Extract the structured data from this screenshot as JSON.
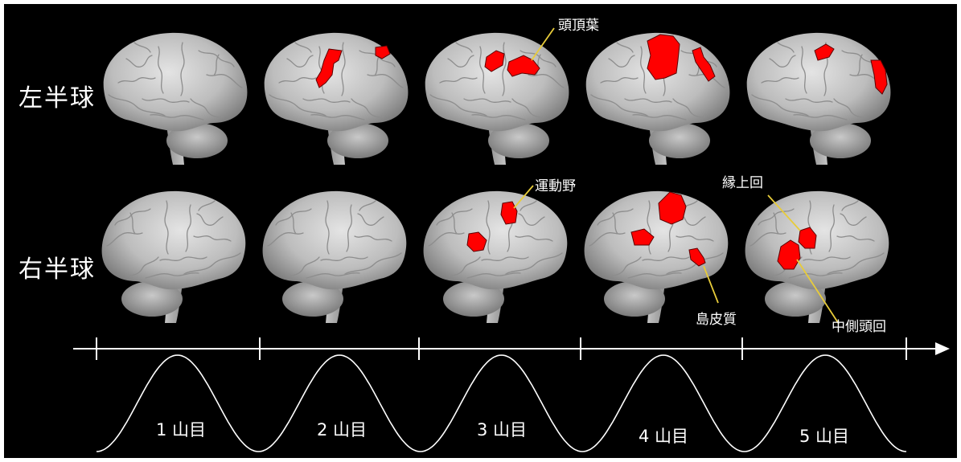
{
  "rows": [
    {
      "label": "左半球",
      "side": "left"
    },
    {
      "label": "右半球",
      "side": "right"
    }
  ],
  "region_labels": {
    "parietal": "頭頂葉",
    "motor": "運動野",
    "supramarginal": "縁上回",
    "insula": "島皮質",
    "middle_temporal": "中側頭回"
  },
  "waves": [
    {
      "label": "1 山目"
    },
    {
      "label": "2 山目"
    },
    {
      "label": "3 山目"
    },
    {
      "label": "4 山目"
    },
    {
      "label": "5 山目"
    }
  ],
  "colors": {
    "background": "#000000",
    "brain": "#c8c8c8",
    "activation": "#ff0000",
    "leader_line": "#e8cc3a",
    "axis": "#ffffff"
  }
}
